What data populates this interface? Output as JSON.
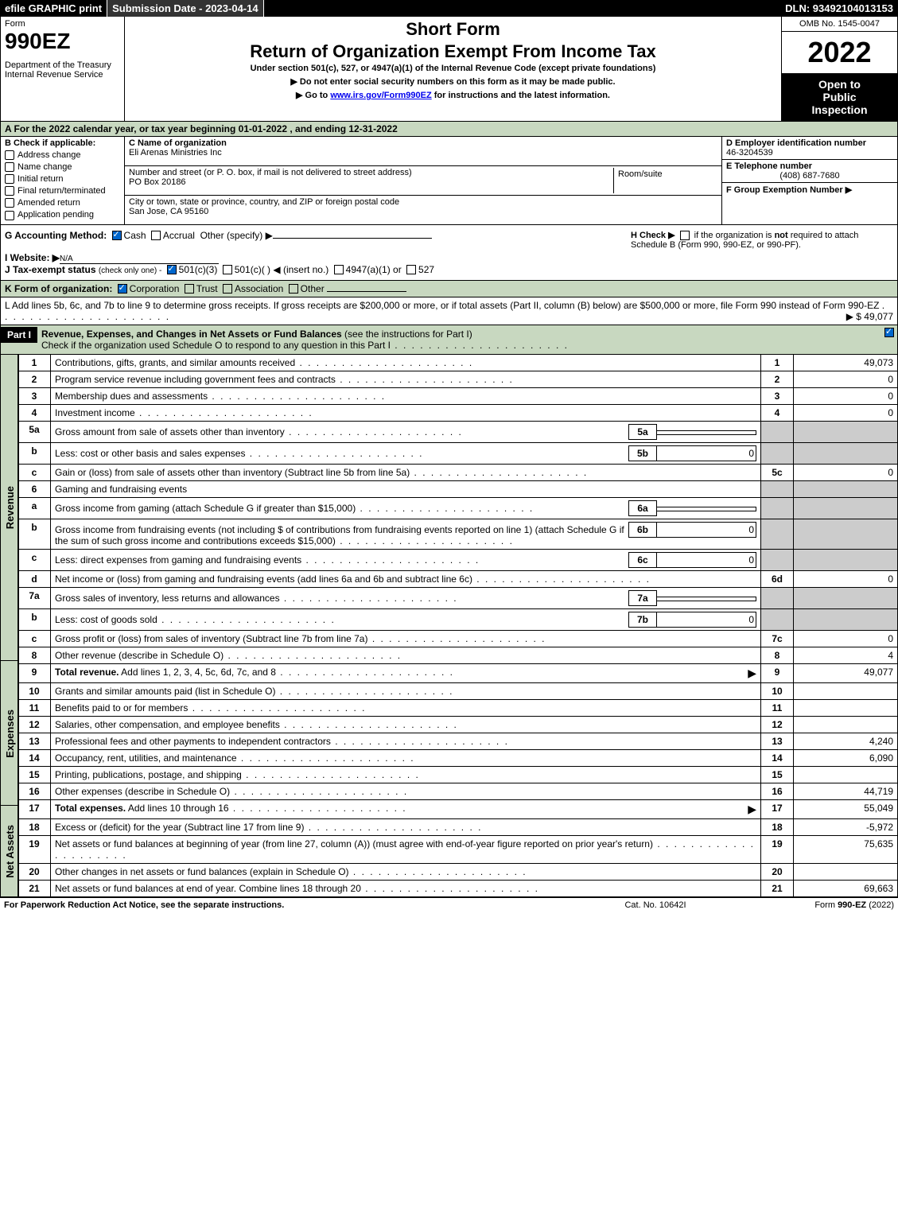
{
  "topbar": {
    "efile": "efile GRAPHIC print",
    "submission": "Submission Date - 2023-04-14",
    "dln": "DLN: 93492104013153"
  },
  "header": {
    "form_word": "Form",
    "form_num": "990EZ",
    "dept": "Department of the Treasury\nInternal Revenue Service",
    "short_form": "Short Form",
    "return_title": "Return of Organization Exempt From Income Tax",
    "subtitle": "Under section 501(c), 527, or 4947(a)(1) of the Internal Revenue Code (except private foundations)",
    "warning": "▶ Do not enter social security numbers on this form as it may be made public.",
    "goto": "▶ Go to ",
    "goto_link": "www.irs.gov/Form990EZ",
    "goto_tail": " for instructions and the latest information.",
    "omb": "OMB No. 1545-0047",
    "year": "2022",
    "open_public": "Open to Public Inspection"
  },
  "row_a": "A  For the 2022 calendar year, or tax year beginning 01-01-2022  , and ending 12-31-2022",
  "col_b": {
    "label": "B  Check if applicable:",
    "items": [
      "Address change",
      "Name change",
      "Initial return",
      "Final return/terminated",
      "Amended return",
      "Application pending"
    ]
  },
  "col_c": {
    "name_label": "C Name of organization",
    "name": "Eli Arenas Ministries Inc",
    "street_label": "Number and street (or P. O. box, if mail is not delivered to street address)",
    "street": "PO Box 20186",
    "room_label": "Room/suite",
    "city_label": "City or town, state or province, country, and ZIP or foreign postal code",
    "city": "San Jose, CA  95160"
  },
  "col_d": {
    "ein_label": "D Employer identification number",
    "ein": "46-3204539",
    "phone_label": "E Telephone number",
    "phone": "(408) 687-7680",
    "group_label": "F Group Exemption Number  ▶"
  },
  "row_g": {
    "label": "G Accounting Method:",
    "cash": "Cash",
    "accrual": "Accrual",
    "other": "Other (specify) ▶"
  },
  "row_h": {
    "label": "H  Check ▶",
    "text": "if the organization is not required to attach Schedule B (Form 990, 990-EZ, or 990-PF)."
  },
  "row_i": {
    "label": "I Website: ▶",
    "value": "N/A"
  },
  "row_j": {
    "label": "J Tax-exempt status",
    "sub": "(check only one) -",
    "opt1": "501(c)(3)",
    "opt2": "501(c)(  )",
    "opt2_tail": "◀ (insert no.)",
    "opt3": "4947(a)(1) or",
    "opt4": "527"
  },
  "row_k": {
    "label": "K Form of organization:",
    "opts": [
      "Corporation",
      "Trust",
      "Association",
      "Other"
    ]
  },
  "row_l": {
    "text": "L Add lines 5b, 6c, and 7b to line 9 to determine gross receipts. If gross receipts are $200,000 or more, or if total assets (Part II, column (B) below) are $500,000 or more, file Form 990 instead of Form 990-EZ",
    "amount": "▶ $ 49,077"
  },
  "part1": {
    "label": "Part I",
    "title": "Revenue, Expenses, and Changes in Net Assets or Fund Balances",
    "subtitle": "(see the instructions for Part I)",
    "check_text": "Check if the organization used Schedule O to respond to any question in this Part I"
  },
  "sides": {
    "revenue": "Revenue",
    "expenses": "Expenses",
    "netassets": "Net Assets"
  },
  "lines": [
    {
      "num": "1",
      "desc": "Contributions, gifts, grants, and similar amounts received",
      "r": "1",
      "amt": "49,073"
    },
    {
      "num": "2",
      "desc": "Program service revenue including government fees and contracts",
      "r": "2",
      "amt": "0"
    },
    {
      "num": "3",
      "desc": "Membership dues and assessments",
      "r": "3",
      "amt": "0"
    },
    {
      "num": "4",
      "desc": "Investment income",
      "r": "4",
      "amt": "0"
    },
    {
      "num": "5a",
      "desc": "Gross amount from sale of assets other than inventory",
      "sub": "5a",
      "subval": ""
    },
    {
      "num": "b",
      "desc": "Less: cost or other basis and sales expenses",
      "sub": "5b",
      "subval": "0"
    },
    {
      "num": "c",
      "desc": "Gain or (loss) from sale of assets other than inventory (Subtract line 5b from line 5a)",
      "r": "5c",
      "amt": "0"
    },
    {
      "num": "6",
      "desc": "Gaming and fundraising events"
    },
    {
      "num": "a",
      "desc": "Gross income from gaming (attach Schedule G if greater than $15,000)",
      "sub": "6a",
      "subval": ""
    },
    {
      "num": "b",
      "desc": "Gross income from fundraising events (not including $               of contributions from fundraising events reported on line 1) (attach Schedule G if the sum of such gross income and contributions exceeds $15,000)",
      "sub": "6b",
      "subval": "0"
    },
    {
      "num": "c",
      "desc": "Less: direct expenses from gaming and fundraising events",
      "sub": "6c",
      "subval": "0"
    },
    {
      "num": "d",
      "desc": "Net income or (loss) from gaming and fundraising events (add lines 6a and 6b and subtract line 6c)",
      "r": "6d",
      "amt": "0"
    },
    {
      "num": "7a",
      "desc": "Gross sales of inventory, less returns and allowances",
      "sub": "7a",
      "subval": ""
    },
    {
      "num": "b",
      "desc": "Less: cost of goods sold",
      "sub": "7b",
      "subval": "0"
    },
    {
      "num": "c",
      "desc": "Gross profit or (loss) from sales of inventory (Subtract line 7b from line 7a)",
      "r": "7c",
      "amt": "0"
    },
    {
      "num": "8",
      "desc": "Other revenue (describe in Schedule O)",
      "r": "8",
      "amt": "4"
    },
    {
      "num": "9",
      "desc": "Total revenue. Add lines 1, 2, 3, 4, 5c, 6d, 7c, and 8",
      "r": "9",
      "amt": "49,077",
      "bold": true,
      "arrow": true
    }
  ],
  "exp_lines": [
    {
      "num": "10",
      "desc": "Grants and similar amounts paid (list in Schedule O)",
      "r": "10",
      "amt": ""
    },
    {
      "num": "11",
      "desc": "Benefits paid to or for members",
      "r": "11",
      "amt": ""
    },
    {
      "num": "12",
      "desc": "Salaries, other compensation, and employee benefits",
      "r": "12",
      "amt": ""
    },
    {
      "num": "13",
      "desc": "Professional fees and other payments to independent contractors",
      "r": "13",
      "amt": "4,240"
    },
    {
      "num": "14",
      "desc": "Occupancy, rent, utilities, and maintenance",
      "r": "14",
      "amt": "6,090"
    },
    {
      "num": "15",
      "desc": "Printing, publications, postage, and shipping",
      "r": "15",
      "amt": ""
    },
    {
      "num": "16",
      "desc": "Other expenses (describe in Schedule O)",
      "r": "16",
      "amt": "44,719"
    },
    {
      "num": "17",
      "desc": "Total expenses. Add lines 10 through 16",
      "r": "17",
      "amt": "55,049",
      "bold": true,
      "arrow": true
    }
  ],
  "net_lines": [
    {
      "num": "18",
      "desc": "Excess or (deficit) for the year (Subtract line 17 from line 9)",
      "r": "18",
      "amt": "-5,972"
    },
    {
      "num": "19",
      "desc": "Net assets or fund balances at beginning of year (from line 27, column (A)) (must agree with end-of-year figure reported on prior year's return)",
      "r": "19",
      "amt": "75,635"
    },
    {
      "num": "20",
      "desc": "Other changes in net assets or fund balances (explain in Schedule O)",
      "r": "20",
      "amt": ""
    },
    {
      "num": "21",
      "desc": "Net assets or fund balances at end of year. Combine lines 18 through 20",
      "r": "21",
      "amt": "69,663"
    }
  ],
  "footer": {
    "left": "For Paperwork Reduction Act Notice, see the separate instructions.",
    "center": "Cat. No. 10642I",
    "right_pre": "Form ",
    "right_bold": "990-EZ",
    "right_tail": " (2022)"
  }
}
